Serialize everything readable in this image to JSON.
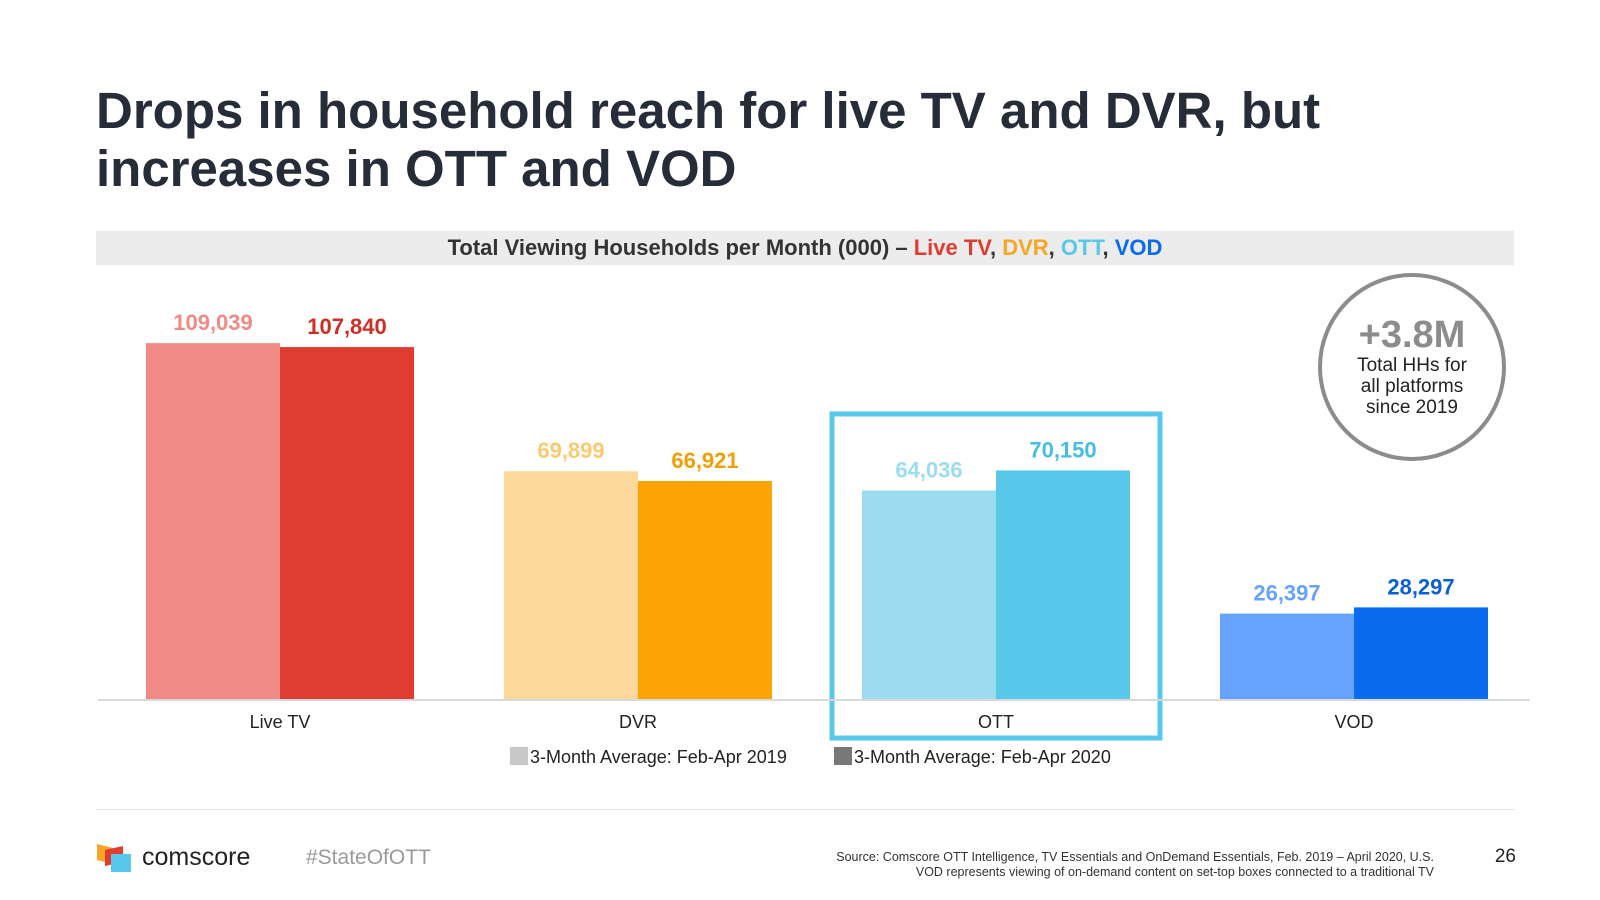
{
  "title": "Drops in household reach for live TV and DVR, but increases in OTT and VOD",
  "chart_data": {
    "type": "bar",
    "title": "Total Viewing Households per Month (000) – Live TV, DVR, OTT, VOD",
    "title_prefix": "Total Viewing Households per Month (000) – ",
    "title_parts": [
      {
        "text": "Live TV",
        "color": "#e03c31"
      },
      {
        "text": ", ",
        "color": "#333333"
      },
      {
        "text": "DVR",
        "color": "#f5a623"
      },
      {
        "text": ", ",
        "color": "#333333"
      },
      {
        "text": "OTT",
        "color": "#58c8ea"
      },
      {
        "text": ", ",
        "color": "#333333"
      },
      {
        "text": "VOD",
        "color": "#0b6bef"
      }
    ],
    "categories": [
      "Live TV",
      "DVR",
      "OTT",
      "VOD"
    ],
    "series": [
      {
        "name": "3-Month Average: Feb-Apr 2019",
        "values": [
          109039,
          69899,
          64036,
          26397
        ],
        "labels": [
          "109,039",
          "69,899",
          "64,036",
          "26,397"
        ],
        "colors": [
          "#ef8b84",
          "#fdd89b",
          "#9bdcf0",
          "#66a3ff"
        ],
        "label_colors": [
          "#ef8b84",
          "#f8ca72",
          "#9bdcf0",
          "#66a3ff"
        ],
        "legend_color": "#c8c8c8"
      },
      {
        "name": "3-Month Average: Feb-Apr 2020",
        "values": [
          107840,
          66921,
          70150,
          28297
        ],
        "labels": [
          "107,840",
          "66,921",
          "70,150",
          "28,297"
        ],
        "colors": [
          "#e03c31",
          "#fba404",
          "#58c8ea",
          "#0b6bef"
        ],
        "label_colors": [
          "#cf2e25",
          "#f29e06",
          "#46bde2",
          "#0b5fd6"
        ],
        "legend_color": "#787878"
      }
    ],
    "highlight_category": "OTT",
    "highlight_color": "#58c8ea",
    "ylim": [
      0,
      110000
    ],
    "grid": false,
    "legend_position": "bottom"
  },
  "callout": {
    "value": "+3.8M",
    "text": "Total HHs for all platforms since 2019"
  },
  "footer": {
    "brand": "comscore",
    "hashtag": "#StateOfOTT",
    "source_line1": "Source: Comscore OTT Intelligence, TV Essentials and OnDemand Essentials, Feb. 2019 – April 2020, U.S.",
    "source_line2": "VOD represents viewing of on-demand content on set-top boxes connected to a traditional TV",
    "page_number": "26"
  }
}
